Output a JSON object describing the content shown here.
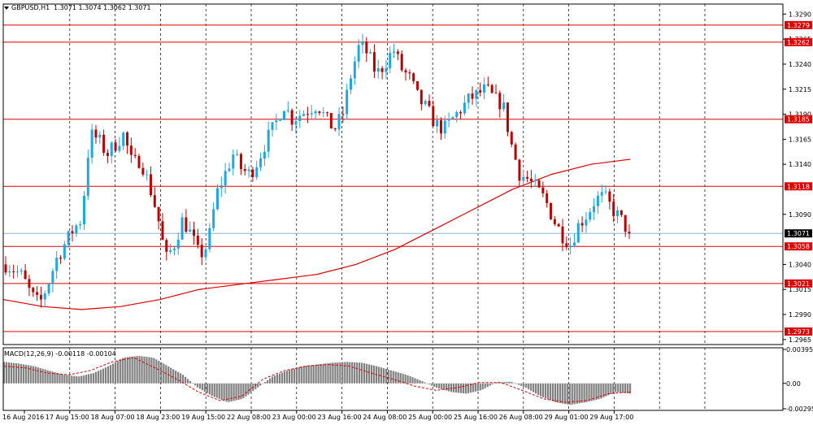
{
  "header": {
    "symbol_label": "GBPUSD,H1",
    "ohlc": "1.3071 1.3074 1.3062 1.3071"
  },
  "macd_label": "MACD(12,26,9) -0.00118 -0.00104",
  "colors": {
    "bull": "#1ea7e1",
    "bear": "#c00000",
    "level_line": "#e00000",
    "ma_line": "#e00000",
    "current_price": "#8ab6d6",
    "macd_hist": "#808080",
    "signal": "#e00000",
    "grid": "#000000"
  },
  "chart_data": {
    "type": "candlestick",
    "timeframe": "H1",
    "price_axis": {
      "ticks": [
        "1.3290",
        "1.3265",
        "1.3240",
        "1.3215",
        "1.3190",
        "1.3165",
        "1.3140",
        "1.3090",
        "1.3040",
        "1.3015",
        "1.2990",
        "1.2965"
      ],
      "range": [
        1.296,
        1.33
      ]
    },
    "time_axis": {
      "labels": [
        "16 Aug 2016",
        "17 Aug 15:00",
        "18 Aug 07:00",
        "18 Aug 23:00",
        "19 Aug 15:00",
        "22 Aug 08:00",
        "23 Aug 00:00",
        "23 Aug 16:00",
        "24 Aug 08:00",
        "25 Aug 00:00",
        "25 Aug 16:00",
        "26 Aug 08:00",
        "29 Aug 01:00",
        "29 Aug 17:00"
      ]
    },
    "levels": [
      "1.3279",
      "1.3262",
      "1.3185",
      "1.3118",
      "1.3058",
      "1.3021",
      "1.2973"
    ],
    "current_price": "1.3071",
    "close_path": [
      1.304,
      1.3035,
      1.3028,
      1.301,
      1.3,
      1.302,
      1.3045,
      1.306,
      1.3075,
      1.3085,
      1.317,
      1.3165,
      1.315,
      1.316,
      1.317,
      1.314,
      1.3145,
      1.312,
      1.309,
      1.3045,
      1.306,
      1.3085,
      1.307,
      1.3048,
      1.306,
      1.311,
      1.313,
      1.315,
      1.3135,
      1.313,
      1.3145,
      1.3165,
      1.318,
      1.32,
      1.3185,
      1.319,
      1.3195,
      1.32,
      1.3185,
      1.3175,
      1.319,
      1.323,
      1.326,
      1.325,
      1.323,
      1.324,
      1.3255,
      1.3235,
      1.3225,
      1.3205,
      1.3195,
      1.318,
      1.3175,
      1.3185,
      1.3195,
      1.3205,
      1.321,
      1.3215,
      1.3205,
      1.32,
      1.316,
      1.313,
      1.3125,
      1.3115,
      1.3105,
      1.3085,
      1.307,
      1.306,
      1.308,
      1.309,
      1.3105,
      1.3108,
      1.3095,
      1.3085,
      1.3071
    ],
    "moving_average": [
      1.3005,
      1.2998,
      1.2995,
      1.2998,
      1.3005,
      1.3015,
      1.302,
      1.3025,
      1.303,
      1.304,
      1.3055,
      1.3075,
      1.3095,
      1.3115,
      1.313,
      1.314,
      1.3145
    ],
    "macd": {
      "ticks": [
        "0.00395",
        "0.00",
        "-0.00295"
      ],
      "histogram": [
        0.0025,
        0.0023,
        0.002,
        0.0015,
        0.001,
        0.0008,
        0.0012,
        0.002,
        0.003,
        0.0032,
        0.003,
        0.002,
        0.001,
        -0.0005,
        -0.0015,
        -0.0022,
        -0.0018,
        -0.0005,
        0.0008,
        0.0015,
        0.002,
        0.0022,
        0.0024,
        0.0025,
        0.0024,
        0.002,
        0.0015,
        0.001,
        0.0003,
        -0.0005,
        -0.001,
        -0.0012,
        -0.0008,
        0.0001,
        0.0002,
        -0.0005,
        -0.0015,
        -0.0022,
        -0.0025,
        -0.0022,
        -0.0018,
        -0.001,
        -0.0012
      ],
      "signal": [
        0.002,
        0.0018,
        0.0012,
        0.001,
        0.0015,
        0.0025,
        0.003,
        0.0018,
        0.0005,
        -0.001,
        -0.002,
        -0.0015,
        0.0005,
        0.0015,
        0.002,
        0.0022,
        0.002,
        0.0012,
        0.0005,
        -0.0003,
        -0.0008,
        -0.0005,
        0.0001,
        0.0001,
        -0.0008,
        -0.0018,
        -0.0022,
        -0.002,
        -0.0012,
        -0.001
      ]
    }
  }
}
